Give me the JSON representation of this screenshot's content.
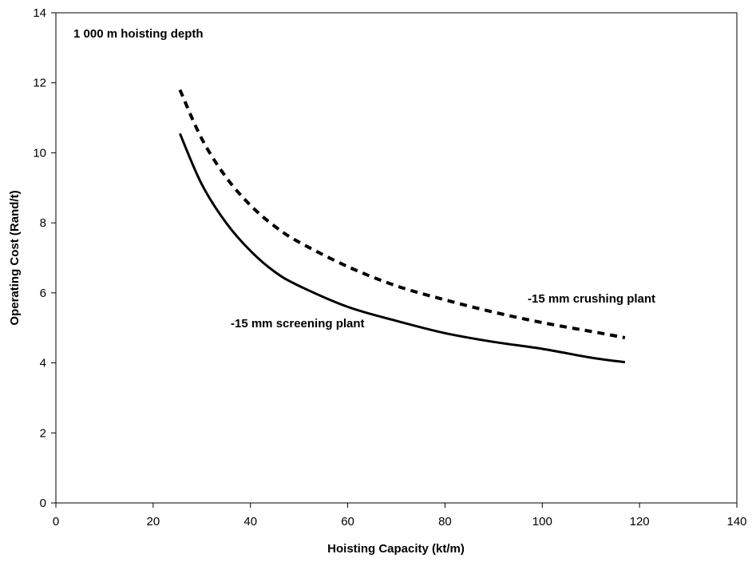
{
  "chart_data": {
    "type": "line",
    "title": "",
    "xlabel": "Hoisting Capacity (kt/m)",
    "ylabel": "Operating Cost (Rand/t)",
    "xlim": [
      0,
      140
    ],
    "ylim": [
      0,
      14
    ],
    "x_ticks": [
      0,
      20,
      40,
      60,
      80,
      100,
      120,
      140
    ],
    "y_ticks": [
      0,
      2,
      4,
      6,
      8,
      10,
      12,
      14
    ],
    "grid": false,
    "legend": "none",
    "annotations": {
      "depth": "1 000 m hoisting depth",
      "screening": "-15 mm screening plant",
      "crushing": "-15 mm crushing plant"
    },
    "series": [
      {
        "name": "-15 mm screening plant",
        "style": "solid",
        "color": "#000000",
        "x": [
          25.5,
          30,
          35,
          40,
          45,
          50,
          60,
          70,
          80,
          90,
          100,
          110,
          117
        ],
        "y": [
          10.55,
          9.1,
          8.0,
          7.2,
          6.6,
          6.2,
          5.6,
          5.2,
          4.85,
          4.6,
          4.4,
          4.15,
          4.02
        ]
      },
      {
        "name": "-15 mm crushing plant",
        "style": "dotted",
        "color": "#000000",
        "x": [
          25.5,
          30,
          35,
          40,
          45,
          50,
          60,
          70,
          80,
          90,
          100,
          110,
          117
        ],
        "y": [
          11.8,
          10.4,
          9.3,
          8.5,
          7.9,
          7.45,
          6.75,
          6.2,
          5.8,
          5.45,
          5.15,
          4.9,
          4.72
        ]
      }
    ]
  }
}
